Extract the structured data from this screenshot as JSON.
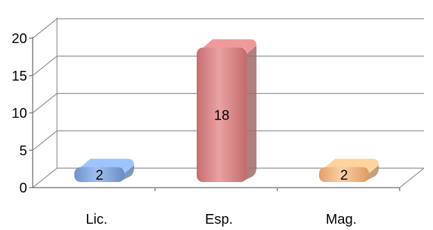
{
  "chart_data": {
    "type": "bar",
    "style": "3d-cylinder",
    "categories": [
      "Lic.",
      "Esp.",
      "Mag."
    ],
    "values": [
      2,
      18,
      2
    ],
    "data_labels": [
      "2",
      "18",
      "2"
    ],
    "colors": [
      "#8fb3e6",
      "#d98c8c",
      "#f5c08f"
    ],
    "yticks": [
      "0",
      "5",
      "10",
      "15",
      "20"
    ],
    "ylim": [
      0,
      20
    ],
    "grid": true,
    "legend": "none"
  }
}
